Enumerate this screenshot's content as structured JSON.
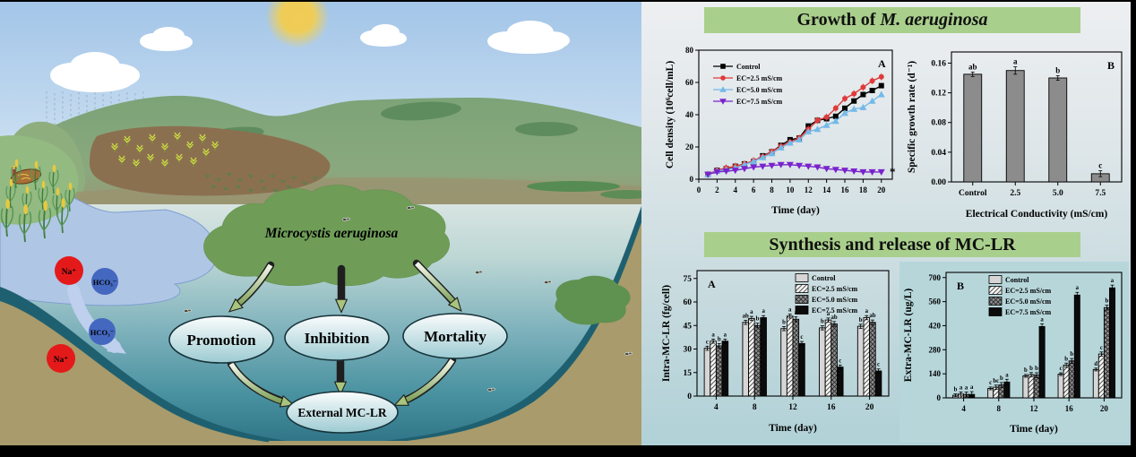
{
  "colors": {
    "banner_green": "#a9cf8c",
    "na_red": "#e41a1a",
    "hco3_blue": "#4468c0",
    "algae_green": "#6f9d58",
    "extra_chart_bg": "#b6d6da"
  },
  "banners": {
    "growth": {
      "prefix": "Growth of ",
      "species": "M. aeruginosa"
    },
    "mclr": {
      "title": "Synthesis and release of MC-LR"
    }
  },
  "illustration": {
    "species_label": "Microcystis aeruginosa",
    "ions": {
      "na": "Na⁺",
      "hco3": "HCO₃⁻"
    },
    "nodes": {
      "promotion": "Promotion",
      "inhibition": "Inhibition",
      "mortality": "Mortality",
      "external": "External MC-LR"
    }
  },
  "chart_data": [
    {
      "id": "growth_line",
      "type": "line",
      "panel_label": "A",
      "xlabel": "Time (day)",
      "ylabel": "Cell density (10⁶cell/mL)",
      "xlim": [
        0,
        21.2
      ],
      "ylim": [
        0,
        80
      ],
      "xticks": [
        0,
        2,
        4,
        6,
        8,
        10,
        12,
        14,
        16,
        18,
        20
      ],
      "yticks": [
        0,
        20,
        40,
        60,
        80
      ],
      "annotation": {
        "text": "*",
        "x": 20.9,
        "y": 4.5
      },
      "legend_position": "top-left",
      "series": [
        {
          "name": "Control",
          "color": "#000000",
          "marker": "square",
          "err": 1.2,
          "x": [
            1,
            2,
            3,
            4,
            5,
            6,
            7,
            8,
            9,
            10,
            11,
            12,
            13,
            14,
            15,
            16,
            17,
            18,
            19,
            20
          ],
          "y": [
            3,
            5.5,
            6.5,
            8,
            9.5,
            11,
            14.5,
            17,
            21,
            24.5,
            25.5,
            33,
            36.5,
            37.5,
            39,
            44,
            48.5,
            52.5,
            55,
            58
          ]
        },
        {
          "name": "EC=2.5 mS/cm",
          "color": "#e03a3a",
          "marker": "circle",
          "err": 2.2,
          "x": [
            1,
            2,
            3,
            4,
            5,
            6,
            7,
            8,
            9,
            10,
            11,
            12,
            13,
            14,
            15,
            16,
            17,
            18,
            19,
            20
          ],
          "y": [
            3,
            5.5,
            7,
            8,
            9.5,
            11.5,
            14,
            17,
            20.5,
            23,
            25.5,
            31,
            36.5,
            38.5,
            44,
            50,
            53,
            57,
            61,
            63.5
          ]
        },
        {
          "name": "EC=5.0 mS/cm",
          "color": "#74b9e8",
          "marker": "triangle-up",
          "err": 1.8,
          "x": [
            1,
            2,
            3,
            4,
            5,
            6,
            7,
            8,
            9,
            10,
            11,
            12,
            13,
            14,
            15,
            16,
            17,
            18,
            19,
            20
          ],
          "y": [
            3,
            5,
            6,
            7,
            9,
            11,
            13.5,
            16,
            19.5,
            22.5,
            24.5,
            29.5,
            31,
            33.5,
            36,
            41,
            43.5,
            44.5,
            48.5,
            52.5
          ]
        },
        {
          "name": "EC=7.5 mS/cm",
          "color": "#7a22cc",
          "marker": "triangle-down",
          "err": 0.7,
          "x": [
            1,
            2,
            3,
            4,
            5,
            6,
            7,
            8,
            9,
            10,
            11,
            12,
            13,
            14,
            15,
            16,
            17,
            18,
            19,
            20
          ],
          "y": [
            3,
            4.5,
            5,
            5.5,
            6.5,
            7.5,
            8,
            8.5,
            9,
            9,
            8.5,
            8,
            7.5,
            6.5,
            6,
            5.5,
            5,
            4.5,
            4.5,
            4.5
          ]
        }
      ]
    },
    {
      "id": "growth_bar",
      "type": "bar",
      "panel_label": "B",
      "xlabel": "Electrical Conductivity (mS/cm)",
      "ylabel": "Specific growth rate (d⁻¹)",
      "ylim": [
        0,
        0.175
      ],
      "yticks": [
        0,
        0.04,
        0.08,
        0.12,
        0.16
      ],
      "ydec": 2,
      "categories": [
        "Control",
        "2.5",
        "5.0",
        "7.5"
      ],
      "values": [
        0.145,
        0.15,
        0.14,
        0.011
      ],
      "errors": [
        0.003,
        0.005,
        0.003,
        0.004
      ],
      "letters": [
        "ab",
        "a",
        "b",
        "c"
      ],
      "fill": "gray"
    },
    {
      "id": "intra_bar",
      "type": "bar",
      "panel_label": "A",
      "xlabel": "Time (day)",
      "ylabel": "Intra-MC-LR (fg/cell)",
      "ylim": [
        0,
        80
      ],
      "yticks": [
        0,
        15,
        30,
        45,
        60,
        75
      ],
      "categories": [
        "4",
        "8",
        "12",
        "16",
        "20"
      ],
      "legend_position": "top-right",
      "series": [
        {
          "name": "Control",
          "fill": "lightgray",
          "err": 1.3,
          "values": [
            30.5,
            47,
            43,
            43.5,
            44.5
          ],
          "letters": [
            "c",
            "ab",
            "b",
            "b",
            "b"
          ]
        },
        {
          "name": "EC=2.5 mS/cm",
          "fill": "diag",
          "err": 1.3,
          "values": [
            35,
            49.5,
            51,
            48.5,
            50
          ],
          "letters": [
            "a",
            "a",
            "a",
            "a",
            "a"
          ]
        },
        {
          "name": "EC=5.0 mS/cm",
          "fill": "cross",
          "err": 1.5,
          "values": [
            32,
            45,
            49,
            46,
            47
          ],
          "letters": [
            "b",
            "b",
            "a",
            "ab",
            "ab"
          ]
        },
        {
          "name": "EC=7.5 mS/cm",
          "fill": "black",
          "err": 1.3,
          "values": [
            35,
            50,
            33.5,
            18.5,
            16
          ],
          "letters": [
            "a",
            "a",
            "c",
            "c",
            "c"
          ]
        }
      ]
    },
    {
      "id": "extra_bar",
      "type": "bar",
      "panel_label": "B",
      "xlabel": "Time (day)",
      "ylabel": "Extra-MC-LR (ug/L)",
      "ylim": [
        0,
        730
      ],
      "yticks": [
        0,
        140,
        280,
        420,
        560,
        700
      ],
      "categories": [
        "4",
        "8",
        "12",
        "16",
        "20"
      ],
      "bg": "#b6d6da",
      "legend_position": "top-center",
      "series": [
        {
          "name": "Control",
          "fill": "lightgray",
          "err": 8,
          "values": [
            15,
            55,
            128,
            138,
            165
          ],
          "letters": [
            "b",
            "c",
            "b",
            "c",
            "d"
          ]
        },
        {
          "name": "EC=2.5 mS/cm",
          "fill": "diag",
          "err": 12,
          "values": [
            22,
            62,
            135,
            190,
            255
          ],
          "letters": [
            "a",
            "bc",
            "b",
            "b",
            "c"
          ]
        },
        {
          "name": "EC=5.0 mS/cm",
          "fill": "cross",
          "err": 14,
          "values": [
            20,
            75,
            132,
            215,
            525
          ],
          "letters": [
            "a",
            "b",
            "b",
            "b",
            "b"
          ]
        },
        {
          "name": "EC=7.5 mS/cm",
          "fill": "black",
          "err": 16,
          "values": [
            20,
            92,
            415,
            598,
            640
          ],
          "letters": [
            "a",
            "a",
            "a",
            "a",
            "a"
          ]
        }
      ]
    }
  ]
}
